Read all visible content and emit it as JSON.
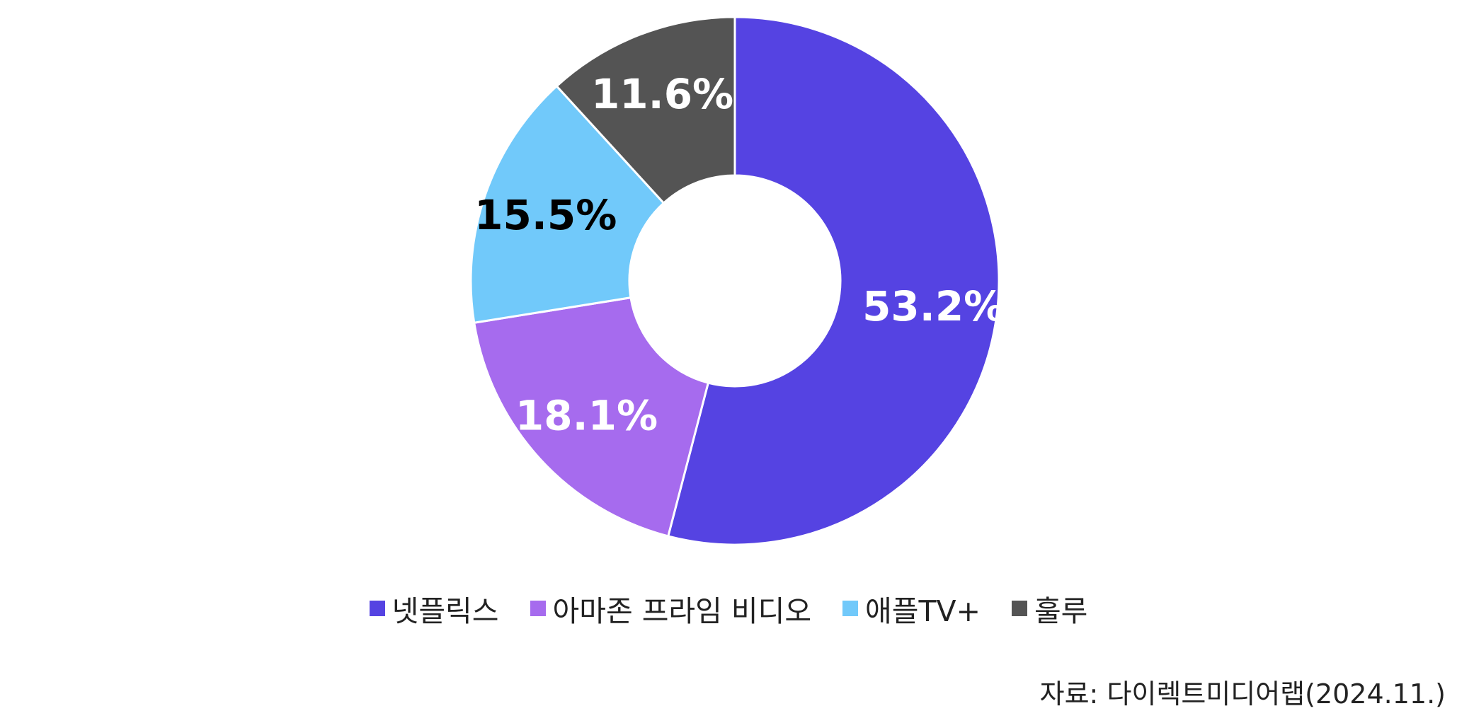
{
  "chart_data": {
    "type": "pie",
    "variant": "donut",
    "categories": [
      "넷플릭스",
      "아마존 프라임 비디오",
      "애플TV+",
      "훌루"
    ],
    "values": [
      53.2,
      18.1,
      15.5,
      11.6
    ],
    "labels": [
      "53.2%",
      "18.1%",
      "15.5%",
      "11.6%"
    ],
    "colors": [
      "#5543E2",
      "#A66BEE",
      "#71C9FA",
      "#545454"
    ],
    "label_colors": [
      "#FFFFFF",
      "#FFFFFF",
      "#000000",
      "#FFFFFF"
    ],
    "legend_position": "bottom",
    "start_angle": "top, clockwise"
  },
  "legend": {
    "items": [
      {
        "label": "넷플릭스",
        "color": "#5543E2"
      },
      {
        "label": "아마존 프라임 비디오",
        "color": "#A66BEE"
      },
      {
        "label": "애플TV+",
        "color": "#71C9FA"
      },
      {
        "label": "훌루",
        "color": "#545454"
      }
    ]
  },
  "source": "자료: 다이렉트미디어랩(2024.11.)"
}
